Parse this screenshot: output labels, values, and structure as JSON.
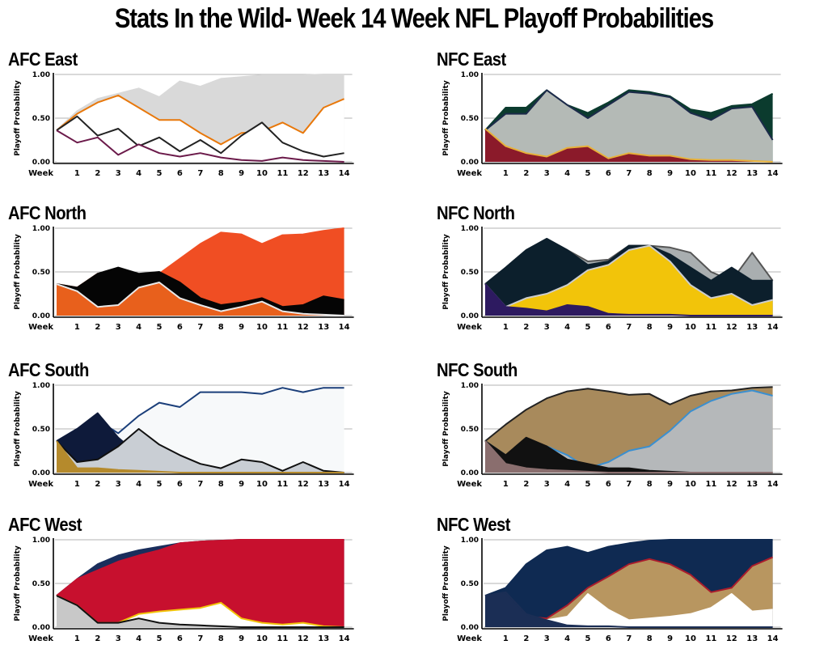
{
  "title": "Stats In the Wild- Week 14 Week NFL Playoff Probabilities",
  "chart_data": [
    {
      "type": "area",
      "title": "AFC East",
      "ylabel": "Playoff Probability",
      "xlabel_prefix": "Week",
      "x": [
        0,
        1,
        2,
        3,
        4,
        5,
        6,
        7,
        8,
        9,
        10,
        11,
        12,
        13,
        14
      ],
      "ylim": [
        0,
        1
      ],
      "yticks": [
        "0.00",
        "0.50",
        "1.00"
      ],
      "series": [
        {
          "color": "#d9d9d9",
          "stroke": "#d9d9d9",
          "values": [
            0.36,
            0.58,
            0.72,
            0.78,
            0.84,
            0.74,
            0.92,
            0.86,
            0.95,
            0.97,
            0.99,
            0.99,
            0.99,
            1.0,
            1.0
          ]
        },
        {
          "color": "#ffffff",
          "stroke": "#e8780b",
          "values": [
            0.36,
            0.55,
            0.68,
            0.76,
            0.62,
            0.48,
            0.48,
            0.33,
            0.2,
            0.33,
            0.35,
            0.45,
            0.33,
            0.62,
            0.72
          ]
        },
        {
          "color": "#ffffff",
          "stroke": "#222222",
          "values": [
            0.36,
            0.52,
            0.3,
            0.38,
            0.18,
            0.28,
            0.12,
            0.25,
            0.1,
            0.3,
            0.45,
            0.22,
            0.12,
            0.06,
            0.1
          ]
        },
        {
          "color": "#ffffff",
          "stroke": "#6b1a4a",
          "values": [
            0.36,
            0.22,
            0.28,
            0.08,
            0.2,
            0.1,
            0.06,
            0.1,
            0.05,
            0.02,
            0.01,
            0.05,
            0.02,
            0.01,
            0.0
          ]
        }
      ]
    },
    {
      "type": "area",
      "title": "NFC East",
      "ylabel": "Playoff Probability",
      "xlabel_prefix": "Week",
      "x": [
        0,
        1,
        2,
        3,
        4,
        5,
        6,
        7,
        8,
        9,
        10,
        11,
        12,
        13,
        14
      ],
      "ylim": [
        0,
        1
      ],
      "yticks": [
        "0.00",
        "0.50",
        "1.00"
      ],
      "series": [
        {
          "color": "#0b3b2e",
          "stroke": "#0b3b2e",
          "values": [
            0.36,
            0.62,
            0.62,
            0.82,
            0.65,
            0.56,
            0.68,
            0.82,
            0.8,
            0.75,
            0.6,
            0.56,
            0.64,
            0.66,
            0.78
          ]
        },
        {
          "color": "#b4bab6",
          "stroke": "#1c2a4a",
          "values": [
            0.36,
            0.55,
            0.55,
            0.82,
            0.65,
            0.5,
            0.65,
            0.8,
            0.78,
            0.74,
            0.56,
            0.48,
            0.61,
            0.63,
            0.25
          ]
        },
        {
          "color": "#8b1a2a",
          "stroke": "#e7b13a",
          "values": [
            0.38,
            0.18,
            0.1,
            0.06,
            0.16,
            0.18,
            0.04,
            0.1,
            0.07,
            0.07,
            0.03,
            0.02,
            0.02,
            0.01,
            0.0
          ]
        }
      ]
    },
    {
      "type": "area",
      "title": "AFC North",
      "ylabel": "Playoff Probability",
      "xlabel_prefix": "Week",
      "x": [
        0,
        1,
        2,
        3,
        4,
        5,
        6,
        7,
        8,
        9,
        10,
        11,
        12,
        13,
        14
      ],
      "ylim": [
        0,
        1
      ],
      "yticks": [
        "0.00",
        "0.50",
        "1.00"
      ],
      "series": [
        {
          "color": "#f04e23",
          "stroke": "#f04e23",
          "values": [
            0.36,
            0.32,
            0.48,
            0.48,
            0.45,
            0.48,
            0.65,
            0.82,
            0.95,
            0.93,
            0.82,
            0.92,
            0.93,
            0.97,
            1.0
          ]
        },
        {
          "color": "#050505",
          "stroke": "#050505",
          "values": [
            0.36,
            0.32,
            0.48,
            0.55,
            0.48,
            0.5,
            0.38,
            0.2,
            0.12,
            0.15,
            0.2,
            0.1,
            0.12,
            0.22,
            0.18
          ]
        },
        {
          "color": "#e8601c",
          "stroke": "#e8e8e8",
          "values": [
            0.36,
            0.28,
            0.1,
            0.12,
            0.32,
            0.38,
            0.2,
            0.12,
            0.05,
            0.1,
            0.16,
            0.05,
            0.02,
            0.01,
            0.0
          ]
        }
      ]
    },
    {
      "type": "area",
      "title": "NFC North",
      "ylabel": "Playoff Probability",
      "xlabel_prefix": "Week",
      "x": [
        0,
        1,
        2,
        3,
        4,
        5,
        6,
        7,
        8,
        9,
        10,
        11,
        12,
        13,
        14
      ],
      "ylim": [
        0,
        1
      ],
      "yticks": [
        "0.00",
        "0.50",
        "1.00"
      ],
      "series": [
        {
          "color": "#a9aeb0",
          "stroke": "#555555",
          "values": [
            0.36,
            0.55,
            0.75,
            0.88,
            0.75,
            0.62,
            0.64,
            0.8,
            0.8,
            0.78,
            0.72,
            0.5,
            0.4,
            0.72,
            0.4
          ]
        },
        {
          "color": "#0c1f2c",
          "stroke": "#0c1f2c",
          "values": [
            0.36,
            0.55,
            0.75,
            0.88,
            0.75,
            0.58,
            0.62,
            0.8,
            0.8,
            0.7,
            0.55,
            0.4,
            0.55,
            0.4,
            0.4
          ]
        },
        {
          "color": "#f2c40a",
          "stroke": "#cccccc",
          "values": [
            0.36,
            0.1,
            0.2,
            0.25,
            0.35,
            0.52,
            0.58,
            0.75,
            0.8,
            0.62,
            0.35,
            0.2,
            0.25,
            0.12,
            0.18
          ]
        },
        {
          "color": "#2d1a60",
          "stroke": "#2d1a60",
          "values": [
            0.36,
            0.1,
            0.08,
            0.05,
            0.12,
            0.1,
            0.02,
            0.01,
            0.01,
            0.01,
            0.0,
            0.0,
            0.0,
            0.0,
            0.0
          ]
        }
      ]
    },
    {
      "type": "area",
      "title": "AFC South",
      "ylabel": "Playoff Probability",
      "xlabel_prefix": "Week",
      "x": [
        0,
        1,
        2,
        3,
        4,
        5,
        6,
        7,
        8,
        9,
        10,
        11,
        12,
        13,
        14
      ],
      "ylim": [
        0,
        1
      ],
      "yticks": [
        "0.00",
        "0.50",
        "1.00"
      ],
      "series": [
        {
          "color": "#f7f9fa",
          "stroke": "#1b3f7a",
          "values": [
            0.36,
            0.5,
            0.6,
            0.45,
            0.65,
            0.8,
            0.75,
            0.92,
            0.92,
            0.92,
            0.9,
            0.97,
            0.92,
            0.97,
            0.97
          ]
        },
        {
          "color": "#0e1a3a",
          "stroke": "#0e1a3a",
          "values": [
            0.36,
            0.5,
            0.68,
            0.4,
            0.2,
            0.08,
            0.03,
            0.02,
            0.01,
            0.0,
            0.0,
            0.0,
            0.0,
            0.0,
            0.0
          ]
        },
        {
          "color": "#c9ced4",
          "stroke": "#101010",
          "values": [
            0.36,
            0.12,
            0.15,
            0.3,
            0.5,
            0.32,
            0.2,
            0.1,
            0.05,
            0.15,
            0.12,
            0.02,
            0.12,
            0.02,
            0.0
          ]
        },
        {
          "color": "#b58a2c",
          "stroke": "#b58a2c",
          "values": [
            0.36,
            0.05,
            0.05,
            0.03,
            0.02,
            0.01,
            0.0,
            0.0,
            0.0,
            0.0,
            0.0,
            0.0,
            0.0,
            0.0,
            0.0
          ]
        }
      ]
    },
    {
      "type": "area",
      "title": "NFC South",
      "ylabel": "Playoff Probability",
      "xlabel_prefix": "Week",
      "x": [
        0,
        1,
        2,
        3,
        4,
        5,
        6,
        7,
        8,
        9,
        10,
        11,
        12,
        13,
        14
      ],
      "ylim": [
        0,
        1
      ],
      "yticks": [
        "0.00",
        "0.50",
        "1.00"
      ],
      "series": [
        {
          "color": "#a88a5c",
          "stroke": "#222222",
          "values": [
            0.36,
            0.55,
            0.72,
            0.85,
            0.93,
            0.96,
            0.93,
            0.89,
            0.9,
            0.78,
            0.88,
            0.93,
            0.94,
            0.97,
            0.98
          ]
        },
        {
          "color": "#b5b8ba",
          "stroke": "#3a8fd0",
          "values": [
            0.36,
            0.2,
            0.25,
            0.3,
            0.2,
            0.05,
            0.12,
            0.25,
            0.3,
            0.48,
            0.7,
            0.82,
            0.9,
            0.94,
            0.88
          ]
        },
        {
          "color": "#111111",
          "stroke": "#111111",
          "values": [
            0.36,
            0.2,
            0.4,
            0.3,
            0.15,
            0.1,
            0.05,
            0.05,
            0.02,
            0.01,
            0.0,
            0.0,
            0.0,
            0.0,
            0.0
          ]
        },
        {
          "color": "#8a6e6e",
          "stroke": "#8a6e6e",
          "values": [
            0.36,
            0.1,
            0.05,
            0.03,
            0.02,
            0.01,
            0.0,
            0.0,
            0.0,
            0.0,
            0.0,
            0.0,
            0.0,
            0.0,
            0.0
          ]
        }
      ]
    },
    {
      "type": "area",
      "title": "AFC West",
      "ylabel": "Playoff Probability",
      "xlabel_prefix": "Week",
      "x": [
        0,
        1,
        2,
        3,
        4,
        5,
        6,
        7,
        8,
        9,
        10,
        11,
        12,
        13,
        14
      ],
      "ylim": [
        0,
        1
      ],
      "yticks": [
        "0.00",
        "0.50",
        "1.00"
      ],
      "series": [
        {
          "color": "#1a2e5c",
          "stroke": "#1a2e5c",
          "values": [
            0.36,
            0.55,
            0.72,
            0.82,
            0.88,
            0.92,
            0.96,
            0.98,
            0.99,
            1.0,
            1.0,
            1.0,
            1.0,
            1.0,
            1.0
          ]
        },
        {
          "color": "#c7102e",
          "stroke": "#c7102e",
          "values": [
            0.36,
            0.55,
            0.65,
            0.75,
            0.82,
            0.88,
            0.96,
            0.98,
            0.99,
            1.0,
            1.0,
            1.0,
            1.0,
            1.0,
            1.0
          ]
        },
        {
          "color": "#ffffff",
          "stroke": "#f2c40a",
          "values": [
            0.36,
            0.25,
            0.05,
            0.05,
            0.15,
            0.18,
            0.2,
            0.22,
            0.28,
            0.1,
            0.05,
            0.03,
            0.05,
            0.01,
            0.0
          ]
        },
        {
          "color": "#c8c8c8",
          "stroke": "#111111",
          "values": [
            0.36,
            0.25,
            0.05,
            0.05,
            0.1,
            0.05,
            0.03,
            0.02,
            0.01,
            0.0,
            0.0,
            0.0,
            0.0,
            0.0,
            0.0
          ]
        }
      ]
    },
    {
      "type": "area",
      "title": "NFC West",
      "ylabel": "Playoff Probability",
      "xlabel_prefix": "Week",
      "x": [
        0,
        1,
        2,
        3,
        4,
        5,
        6,
        7,
        8,
        9,
        10,
        11,
        12,
        13,
        14
      ],
      "ylim": [
        0,
        1
      ],
      "yticks": [
        "0.00",
        "0.50",
        "1.00"
      ],
      "series": [
        {
          "color": "#0f2a52",
          "stroke": "#0f2a52",
          "values": [
            0.36,
            0.45,
            0.72,
            0.88,
            0.92,
            0.85,
            0.92,
            0.96,
            0.99,
            1.0,
            1.0,
            1.0,
            1.0,
            1.0,
            1.0
          ]
        },
        {
          "color": "#b89660",
          "stroke": "#aa1c2c",
          "values": [
            0.36,
            0.2,
            0.12,
            0.1,
            0.25,
            0.45,
            0.58,
            0.72,
            0.78,
            0.72,
            0.6,
            0.4,
            0.45,
            0.7,
            0.8
          ]
        },
        {
          "color": "#ffffff",
          "stroke": "#ffffff",
          "values": [
            0.36,
            0.15,
            0.05,
            0.08,
            0.12,
            0.38,
            0.2,
            0.08,
            0.1,
            0.12,
            0.15,
            0.22,
            0.38,
            0.18,
            0.2
          ]
        },
        {
          "color": "#1b2e55",
          "stroke": "#1b2e55",
          "values": [
            0.36,
            0.4,
            0.15,
            0.08,
            0.02,
            0.01,
            0.01,
            0.0,
            0.0,
            0.0,
            0.0,
            0.0,
            0.0,
            0.0,
            0.0
          ]
        }
      ]
    }
  ]
}
